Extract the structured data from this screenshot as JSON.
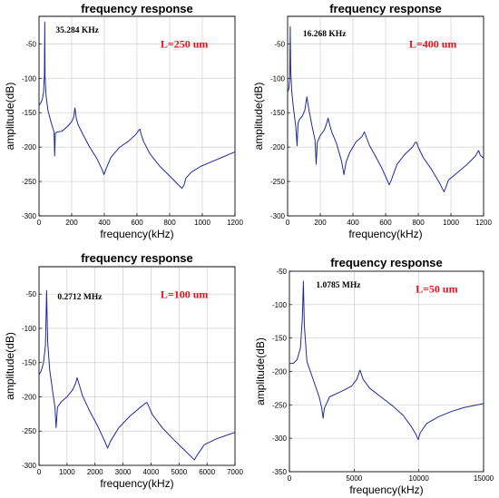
{
  "colors": {
    "curve": "#1f2a9e",
    "annotation": "#e8101a"
  },
  "chart_data": [
    {
      "type": "line",
      "title": "frequency response",
      "xlabel": "frequency(kHz)",
      "ylabel": "amplitude(dB)",
      "xlim": [
        0,
        1200
      ],
      "ylim": [
        -300,
        -10
      ],
      "xticks": [
        0,
        200,
        400,
        600,
        800,
        1000,
        1200
      ],
      "yticks": [
        -300,
        -250,
        -200,
        -150,
        -100,
        -50
      ],
      "grid": true,
      "peak_label": "35.284 KHz",
      "length_label": "L=250 um",
      "series": [
        {
          "x": [
            0,
            10,
            20,
            28,
            33,
            35.3,
            37,
            43,
            55,
            75,
            92,
            96,
            100,
            110,
            140,
            175,
            200,
            212,
            220,
            228,
            240,
            270,
            310,
            355,
            385,
            398,
            410,
            440,
            490,
            550,
            595,
            612,
            618,
            625,
            640,
            680,
            740,
            800,
            850,
            875,
            888,
            900,
            930,
            990,
            1060,
            1130,
            1200
          ],
          "y": [
            -140,
            -136,
            -131,
            -120,
            -95,
            -18,
            -97,
            -125,
            -147,
            -165,
            -178,
            -213,
            -180,
            -178,
            -177,
            -170,
            -163,
            -157,
            -143,
            -158,
            -168,
            -182,
            -200,
            -217,
            -232,
            -240,
            -232,
            -215,
            -201,
            -191,
            -181,
            -175,
            -174,
            -181,
            -192,
            -210,
            -228,
            -242,
            -254,
            -260,
            -255,
            -245,
            -237,
            -228,
            -221,
            -214,
            -207
          ]
        }
      ]
    },
    {
      "type": "line",
      "title": "frequency response",
      "xlabel": "frequency(kHz)",
      "ylabel": "amplitude(dB)",
      "xlim": [
        0,
        1200
      ],
      "ylim": [
        -300,
        -10
      ],
      "xticks": [
        0,
        200,
        400,
        600,
        800,
        1000,
        1200
      ],
      "yticks": [
        -300,
        -250,
        -200,
        -150,
        -100,
        -50
      ],
      "grid": true,
      "peak_label": "16.268 KHz",
      "length_label": "L=400 um",
      "series": [
        {
          "x": [
            0,
            8,
            13,
            16.3,
            19,
            25,
            35,
            50,
            58,
            64,
            72,
            90,
            105,
            118,
            130,
            150,
            168,
            175,
            182,
            200,
            225,
            240,
            248,
            255,
            270,
            300,
            330,
            345,
            358,
            380,
            420,
            455,
            470,
            480,
            500,
            540,
            580,
            610,
            622,
            635,
            670,
            720,
            765,
            782,
            790,
            800,
            830,
            880,
            930,
            958,
            970,
            985,
            1040,
            1100,
            1150,
            1170,
            1180,
            1200
          ],
          "y": [
            -120,
            -115,
            -100,
            -25,
            -88,
            -118,
            -142,
            -170,
            -198,
            -165,
            -160,
            -155,
            -147,
            -127,
            -145,
            -170,
            -190,
            -225,
            -193,
            -183,
            -175,
            -165,
            -158,
            -165,
            -178,
            -195,
            -220,
            -240,
            -222,
            -208,
            -192,
            -185,
            -178,
            -184,
            -197,
            -214,
            -232,
            -248,
            -255,
            -248,
            -225,
            -210,
            -200,
            -193,
            -193,
            -200,
            -215,
            -232,
            -252,
            -265,
            -258,
            -248,
            -237,
            -225,
            -213,
            -205,
            -212,
            -216
          ]
        }
      ]
    },
    {
      "type": "line",
      "title": "frequency response",
      "xlabel": "frequency(kHz)",
      "ylabel": "amplitude(dB)",
      "xlim": [
        0,
        7000
      ],
      "ylim": [
        -300,
        -10
      ],
      "xticks": [
        0,
        1000,
        2000,
        3000,
        4000,
        5000,
        6000,
        7000
      ],
      "yticks": [
        -300,
        -250,
        -200,
        -150,
        -100,
        -50
      ],
      "grid": true,
      "peak_label": "0.2712 MHz",
      "length_label": "L=100 um",
      "series": [
        {
          "x": [
            0,
            80,
            160,
            230,
            271,
            310,
            380,
            480,
            570,
            610,
            660,
            800,
            1000,
            1200,
            1310,
            1360,
            1420,
            1550,
            1800,
            2100,
            2350,
            2450,
            2550,
            2850,
            3250,
            3600,
            3780,
            3850,
            3900,
            4050,
            4400,
            4800,
            5200,
            5450,
            5550,
            5650,
            5900,
            6300,
            6700,
            7000
          ],
          "y": [
            -168,
            -162,
            -150,
            -125,
            -45,
            -120,
            -160,
            -190,
            -215,
            -245,
            -215,
            -207,
            -200,
            -190,
            -180,
            -172,
            -180,
            -198,
            -220,
            -243,
            -265,
            -275,
            -265,
            -245,
            -228,
            -216,
            -210,
            -208,
            -212,
            -226,
            -245,
            -262,
            -278,
            -288,
            -292,
            -285,
            -270,
            -262,
            -256,
            -252
          ]
        }
      ]
    },
    {
      "type": "line",
      "title": "frequency response",
      "xlabel": "frequency(kHz)",
      "ylabel": "amplitude(dB)",
      "xlim": [
        0,
        15000
      ],
      "ylim": [
        -350,
        -50
      ],
      "xticks": [
        0,
        5000,
        10000,
        15000
      ],
      "yticks": [
        -350,
        -300,
        -250,
        -200,
        -150,
        -100,
        -50
      ],
      "grid": true,
      "peak_label": "1.0785 MHz",
      "length_label": "L=50 um",
      "series": [
        {
          "x": [
            0,
            300,
            600,
            850,
            1000,
            1078.5,
            1150,
            1350,
            1800,
            2300,
            2500,
            2600,
            2700,
            3100,
            4000,
            4800,
            5200,
            5450,
            5700,
            6200,
            7000,
            8000,
            8800,
            9400,
            9800,
            9950,
            10100,
            10600,
            11500,
            12500,
            13500,
            14500,
            15000
          ],
          "y": [
            -188,
            -188,
            -182,
            -165,
            -120,
            -65,
            -130,
            -185,
            -210,
            -238,
            -255,
            -270,
            -255,
            -238,
            -230,
            -222,
            -212,
            -198,
            -212,
            -225,
            -237,
            -252,
            -266,
            -282,
            -295,
            -302,
            -292,
            -278,
            -268,
            -260,
            -254,
            -250,
            -248
          ]
        }
      ]
    }
  ]
}
